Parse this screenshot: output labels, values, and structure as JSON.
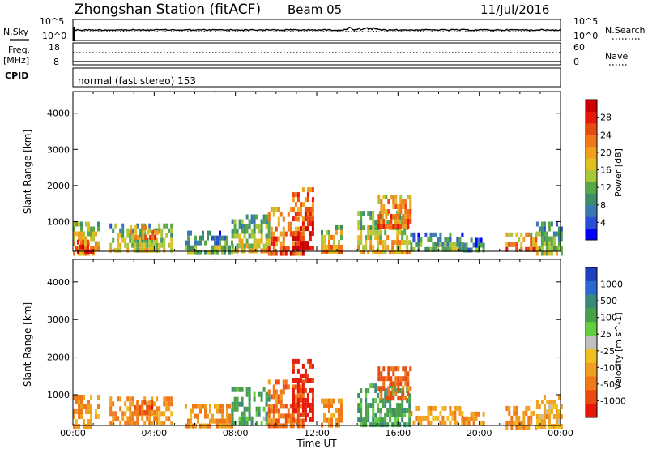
{
  "header": {
    "station": "Zhongshan Station (fitACF)",
    "beam": "Beam 05",
    "date": "11/Jul/2016"
  },
  "strips": {
    "nsky_label": "N.Sky",
    "nsky_ticks": [
      "10^5",
      "10^0"
    ],
    "nsearch_label": "N.Search",
    "nsearch_ticks": [
      "10^5",
      "10^0"
    ],
    "freq_label": "Freq.",
    "freq_unit": "[MHz]",
    "freq_ticks": [
      "18",
      "8"
    ],
    "nave_label": "Nave",
    "nave_ticks": [
      "60",
      "0"
    ],
    "cpid_label": "CPID",
    "cpid_text": "normal (fast stereo) 153"
  },
  "chart_data": [
    {
      "type": "heatmap",
      "name": "power",
      "title": "",
      "xlabel": "",
      "ylabel": "Slant Range [km]",
      "ylim": [
        180,
        4600
      ],
      "xlim": [
        0,
        24
      ],
      "yticks": [
        1000,
        2000,
        3000,
        4000
      ],
      "colorbar": {
        "label": "Power [dB]",
        "ticks": [
          4,
          8,
          12,
          16,
          20,
          24,
          28
        ],
        "range": [
          0,
          32
        ],
        "colors": [
          "#0000ff",
          "#2a4fd6",
          "#3a78b0",
          "#3c8d6a",
          "#58a84a",
          "#a8c83a",
          "#e0c020",
          "#f0a020",
          "#f07818",
          "#e84a10",
          "#e81808",
          "#cc0000"
        ]
      },
      "echo_regions": [
        {
          "t0": 0.0,
          "t1": 1.2,
          "r_low": 180,
          "r_high": 1000,
          "power": 18
        },
        {
          "t0": 0.2,
          "t1": 1.0,
          "r_low": 180,
          "r_high": 500,
          "power": 28
        },
        {
          "t0": 1.8,
          "t1": 4.8,
          "r_low": 180,
          "r_high": 950,
          "power": 14
        },
        {
          "t0": 2.8,
          "t1": 4.2,
          "r_low": 500,
          "r_high": 900,
          "power": 22
        },
        {
          "t0": 5.5,
          "t1": 7.8,
          "r_low": 180,
          "r_high": 750,
          "power": 10
        },
        {
          "t0": 7.8,
          "t1": 9.6,
          "r_low": 180,
          "r_high": 1200,
          "power": 14
        },
        {
          "t0": 9.6,
          "t1": 11.3,
          "r_low": 180,
          "r_high": 1400,
          "power": 22
        },
        {
          "t0": 10.8,
          "t1": 11.8,
          "r_low": 300,
          "r_high": 1950,
          "power": 26
        },
        {
          "t0": 12.2,
          "t1": 13.2,
          "r_low": 180,
          "r_high": 900,
          "power": 18
        },
        {
          "t0": 14.0,
          "t1": 16.6,
          "r_low": 180,
          "r_high": 1300,
          "power": 16
        },
        {
          "t0": 15.0,
          "t1": 16.6,
          "r_low": 900,
          "r_high": 1750,
          "power": 22
        },
        {
          "t0": 16.6,
          "t1": 19.2,
          "r_low": 200,
          "r_high": 700,
          "power": 10
        },
        {
          "t0": 19.2,
          "t1": 20.2,
          "r_low": 200,
          "r_high": 550,
          "power": 8
        },
        {
          "t0": 21.3,
          "t1": 22.8,
          "r_low": 180,
          "r_high": 700,
          "power": 22
        },
        {
          "t0": 22.8,
          "t1": 24.0,
          "r_low": 180,
          "r_high": 1000,
          "power": 12
        }
      ]
    },
    {
      "type": "heatmap",
      "name": "velocity",
      "title": "",
      "xlabel": "Time UT",
      "ylabel": "Slant Range [km]",
      "ylim": [
        180,
        4600
      ],
      "xlim": [
        0,
        24
      ],
      "xticks": [
        "00:00",
        "04:00",
        "08:00",
        "12:00",
        "16:00",
        "20:00",
        "00:00"
      ],
      "yticks": [
        1000,
        2000,
        3000,
        4000
      ],
      "colorbar": {
        "label": "Velocity [m s^-1]",
        "ticks": [
          "1000",
          "500",
          "100",
          "25",
          "-25",
          "-100",
          "-500",
          "-1000"
        ],
        "colors": [
          "#2040c0",
          "#2a6ad0",
          "#3a8a7a",
          "#48a048",
          "#60d040",
          "#c0c0c0",
          "#f0c020",
          "#f0a020",
          "#f07818",
          "#e84a10",
          "#e81808"
        ]
      },
      "echo_regions": [
        {
          "t0": 0.0,
          "t1": 1.2,
          "r_low": 180,
          "r_high": 1000,
          "velocity": -100
        },
        {
          "t0": 1.8,
          "t1": 4.8,
          "r_low": 180,
          "r_high": 950,
          "velocity": -100
        },
        {
          "t0": 3.0,
          "t1": 4.0,
          "r_low": 500,
          "r_high": 850,
          "velocity": -300
        },
        {
          "t0": 5.5,
          "t1": 7.8,
          "r_low": 180,
          "r_high": 750,
          "velocity": -100
        },
        {
          "t0": 7.8,
          "t1": 9.6,
          "r_low": 180,
          "r_high": 1200,
          "velocity": 200
        },
        {
          "t0": 9.6,
          "t1": 11.3,
          "r_low": 180,
          "r_high": 1400,
          "velocity": -200
        },
        {
          "t0": 10.8,
          "t1": 11.8,
          "r_low": 300,
          "r_high": 1950,
          "velocity": -700
        },
        {
          "t0": 12.2,
          "t1": 13.2,
          "r_low": 180,
          "r_high": 900,
          "velocity": -100
        },
        {
          "t0": 14.0,
          "t1": 16.6,
          "r_low": 180,
          "r_high": 1300,
          "velocity": 200
        },
        {
          "t0": 15.0,
          "t1": 16.6,
          "r_low": 900,
          "r_high": 1750,
          "velocity": -300
        },
        {
          "t0": 16.6,
          "t1": 19.2,
          "r_low": 200,
          "r_high": 700,
          "velocity": -60
        },
        {
          "t0": 19.2,
          "t1": 20.2,
          "r_low": 200,
          "r_high": 550,
          "velocity": -60
        },
        {
          "t0": 21.3,
          "t1": 22.8,
          "r_low": 180,
          "r_high": 700,
          "velocity": -100
        },
        {
          "t0": 22.8,
          "t1": 24.0,
          "r_low": 180,
          "r_high": 1000,
          "velocity": -40
        }
      ]
    }
  ]
}
